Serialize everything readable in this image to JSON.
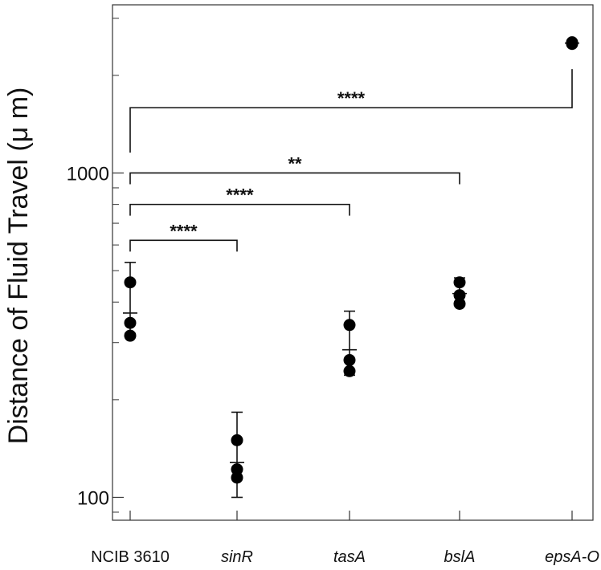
{
  "chart_data": {
    "type": "scatter",
    "title": "",
    "xlabel": "",
    "ylabel": "Distance of Fluid Travel (μ m)",
    "yscale": "log",
    "ylim": [
      85,
      3300
    ],
    "grid": false,
    "legend": "none",
    "categories": [
      {
        "label": "NCIB 3610",
        "italic": false
      },
      {
        "label": "sinR",
        "italic": true
      },
      {
        "label": "tasA",
        "italic": true
      },
      {
        "label": "bslA",
        "italic": true
      },
      {
        "label": "epsA-O",
        "italic": true
      }
    ],
    "yticks": [
      {
        "value": 100,
        "label": "100"
      },
      {
        "value": 1000,
        "label": "1000"
      }
    ],
    "groups": [
      {
        "category": "NCIB 3610",
        "points": [
          460,
          345,
          315
        ],
        "mean": 370,
        "error": [
          320,
          530
        ]
      },
      {
        "category": "sinR",
        "points": [
          150,
          122,
          115
        ],
        "mean": 128,
        "error": [
          100,
          183
        ]
      },
      {
        "category": "tasA",
        "points": [
          340,
          265,
          245
        ],
        "mean": 285,
        "error": [
          238,
          375
        ]
      },
      {
        "category": "bslA",
        "points": [
          460,
          420,
          395
        ],
        "mean": 425,
        "error": [
          390,
          475
        ]
      },
      {
        "category": "epsA-O",
        "points": [
          2530,
          2500
        ],
        "mean": 2515,
        "error": [
          2490,
          2545
        ]
      }
    ],
    "significance": [
      {
        "from": "NCIB 3610",
        "to": "sinR",
        "label": "****",
        "level": 620
      },
      {
        "from": "NCIB 3610",
        "to": "tasA",
        "label": "****",
        "level": 800
      },
      {
        "from": "NCIB 3610",
        "to": "bslA",
        "label": "**",
        "level": 1000
      },
      {
        "from": "NCIB 3610",
        "to": "epsA-O",
        "label": "****",
        "level": 1590
      }
    ],
    "colors": {
      "points": "#000000",
      "axes": "#333333",
      "text": "#111111"
    }
  }
}
